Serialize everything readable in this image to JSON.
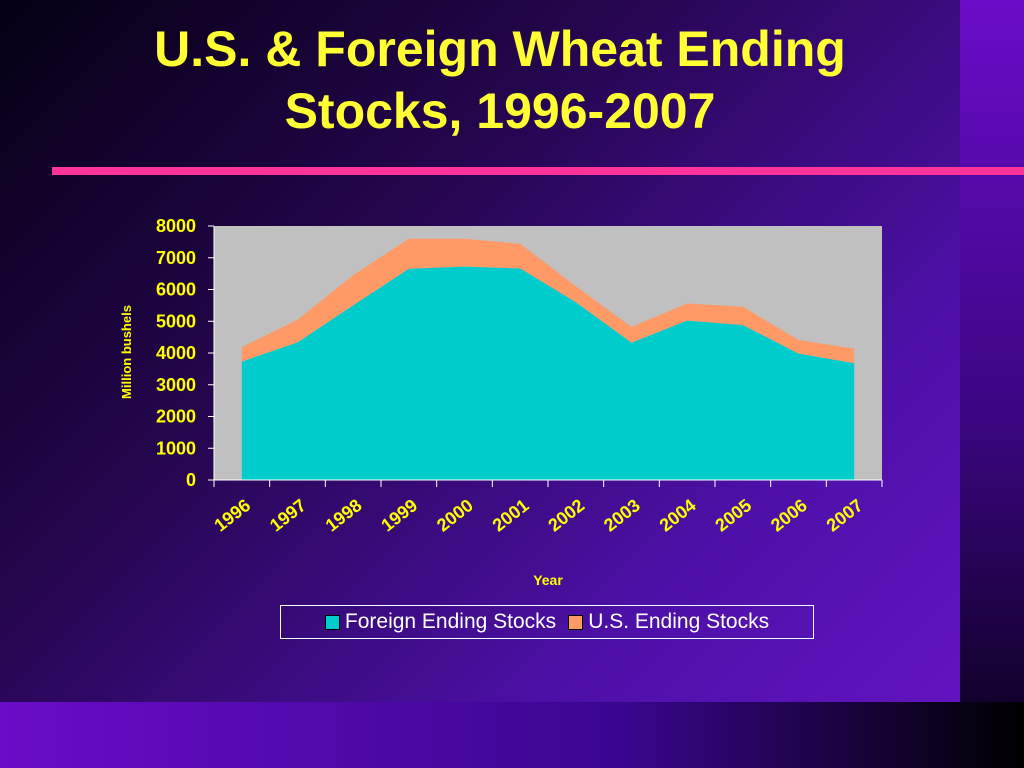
{
  "slide": {
    "title": "U.S. & Foreign Wheat Ending Stocks, 1996-2007"
  },
  "colors": {
    "title": "#ffff33",
    "rule": "#ff3399",
    "plot_background": "#c0c0c0",
    "foreign": "#00cccc",
    "us": "#ff9966",
    "axis_text": "#ffff00"
  },
  "chart_data": {
    "type": "area",
    "stacked": true,
    "title": "",
    "xlabel": "Year",
    "ylabel": "Million bushels",
    "ylim": [
      0,
      8000
    ],
    "yticks": [
      "0",
      "1000",
      "2000",
      "3000",
      "4000",
      "5000",
      "6000",
      "7000",
      "8000"
    ],
    "categories": [
      "1996",
      "1997",
      "1998",
      "1999",
      "2000",
      "2001",
      "2002",
      "2003",
      "2004",
      "2005",
      "2006",
      "2007"
    ],
    "series": [
      {
        "name": "Foreign Ending Stocks",
        "values": [
          3730,
          4330,
          5500,
          6650,
          6720,
          6660,
          5600,
          4320,
          5020,
          4880,
          3980,
          3680
        ]
      },
      {
        "name": "U.S. Ending Stocks",
        "values": [
          450,
          720,
          950,
          950,
          880,
          780,
          500,
          500,
          540,
          580,
          430,
          460
        ]
      }
    ],
    "grid": false,
    "legend_position": "bottom"
  }
}
